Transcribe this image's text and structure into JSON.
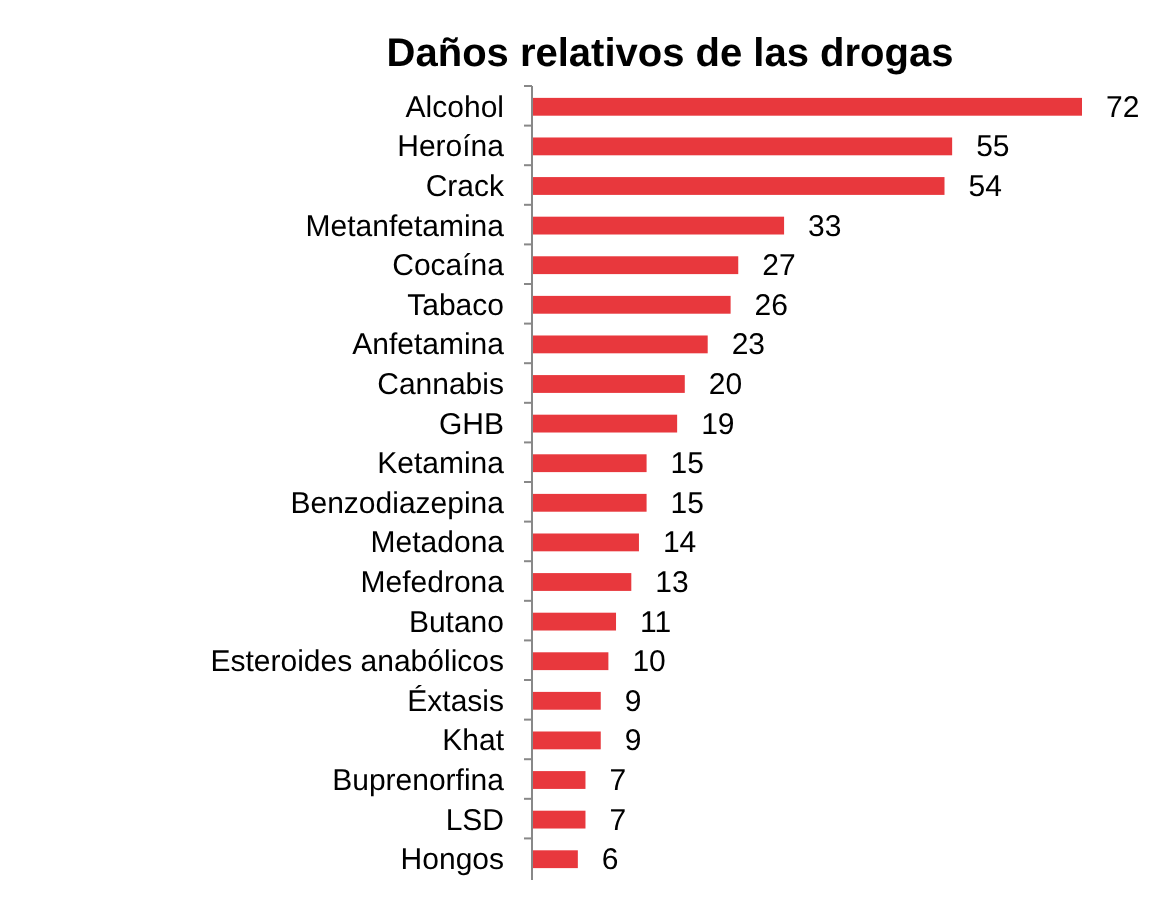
{
  "chart_data": {
    "type": "bar",
    "orientation": "horizontal",
    "title": "Daños relativos de las drogas",
    "categories": [
      "Alcohol",
      "Heroína",
      "Crack",
      "Metanfetamina",
      "Cocaína",
      "Tabaco",
      "Anfetamina",
      "Cannabis",
      "GHB",
      "Ketamina",
      "Benzodiazepina",
      "Metadona",
      "Mefedrona",
      "Butano",
      "Esteroides anabólicos",
      "Éxtasis",
      "Khat",
      "Buprenorfina",
      "LSD",
      "Hongos"
    ],
    "values": [
      72,
      55,
      54,
      33,
      27,
      26,
      23,
      20,
      19,
      15,
      15,
      14,
      13,
      11,
      10,
      9,
      9,
      7,
      7,
      6
    ],
    "color": "#e8383d",
    "data_labels": true
  }
}
